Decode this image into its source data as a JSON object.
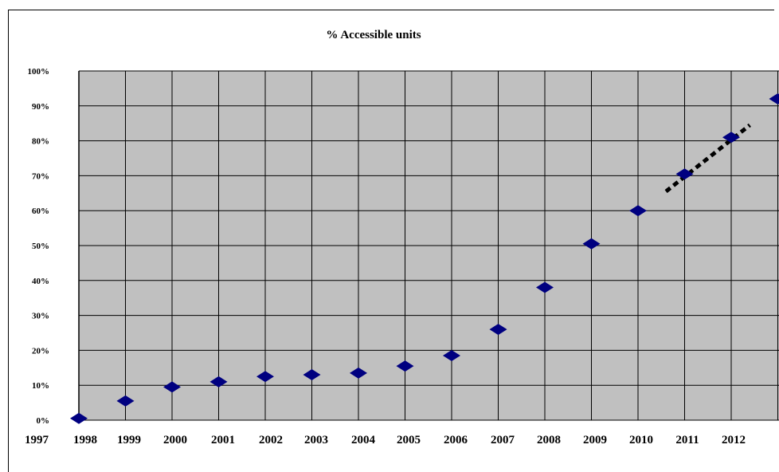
{
  "chart_data": {
    "type": "scatter",
    "title": "% Accessible  units",
    "xlabel": "",
    "ylabel": "",
    "x_ticks": [
      "1997",
      "1998",
      "1999",
      "2000",
      "2001",
      "2002",
      "2003",
      "2004",
      "2005",
      "2006",
      "2007",
      "2008",
      "2009",
      "2010",
      "2011",
      "2012"
    ],
    "y_ticks": [
      "0%",
      "10%",
      "20%",
      "30%",
      "40%",
      "50%",
      "60%",
      "70%",
      "80%",
      "90%",
      "100%"
    ],
    "xlim": [
      1998,
      2013
    ],
    "ylim": [
      0,
      100
    ],
    "grid": true,
    "plot_background": "#c0c0c0",
    "marker_color": "#000080",
    "series": [
      {
        "type": "scatter",
        "x": [
          1998,
          1999,
          2000,
          2001,
          2002,
          2003,
          2004,
          2005,
          2006,
          2007,
          2008,
          2009,
          2010,
          2011,
          2012,
          2013
        ],
        "y": [
          0.5,
          5.5,
          9.5,
          11,
          12.5,
          13,
          13.5,
          15.5,
          18.5,
          26,
          38,
          50.5,
          60,
          70.5,
          81,
          92
        ]
      },
      {
        "type": "trend",
        "style": "dashed",
        "color": "#000000",
        "x": [
          2010.6,
          2012.4
        ],
        "y": [
          65.5,
          84.5
        ]
      }
    ]
  }
}
